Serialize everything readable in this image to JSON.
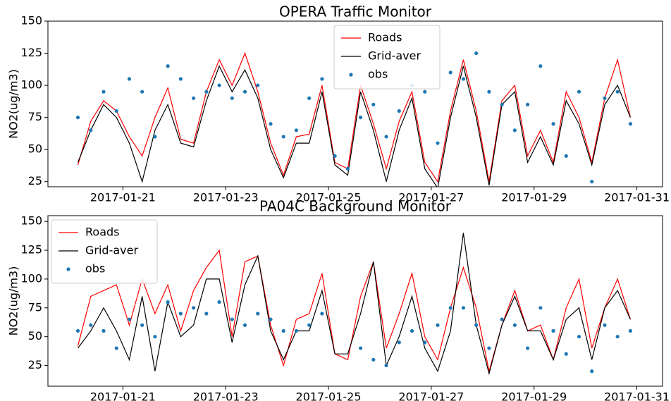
{
  "chart_data": [
    {
      "type": "line",
      "title": "OPERA Traffic Monitor",
      "ylabel": "NO2(ug/m3)",
      "x": [
        "2017-01-20T03:00",
        "2017-01-20T09:00",
        "2017-01-20T15:00",
        "2017-01-20T21:00",
        "2017-01-21T03:00",
        "2017-01-21T09:00",
        "2017-01-21T15:00",
        "2017-01-21T21:00",
        "2017-01-22T03:00",
        "2017-01-22T09:00",
        "2017-01-22T15:00",
        "2017-01-22T21:00",
        "2017-01-23T03:00",
        "2017-01-23T09:00",
        "2017-01-23T15:00",
        "2017-01-23T21:00",
        "2017-01-24T03:00",
        "2017-01-24T09:00",
        "2017-01-24T15:00",
        "2017-01-24T21:00",
        "2017-01-25T03:00",
        "2017-01-25T09:00",
        "2017-01-25T15:00",
        "2017-01-25T21:00",
        "2017-01-26T03:00",
        "2017-01-26T09:00",
        "2017-01-26T15:00",
        "2017-01-26T21:00",
        "2017-01-27T03:00",
        "2017-01-27T09:00",
        "2017-01-27T15:00",
        "2017-01-27T21:00",
        "2017-01-28T03:00",
        "2017-01-28T09:00",
        "2017-01-28T15:00",
        "2017-01-28T21:00",
        "2017-01-29T03:00",
        "2017-01-29T09:00",
        "2017-01-29T15:00",
        "2017-01-29T21:00",
        "2017-01-30T03:00",
        "2017-01-30T09:00",
        "2017-01-30T15:00",
        "2017-01-30T21:00"
      ],
      "xlim": [
        "2017-01-19T13:00",
        "2017-01-31T12:00"
      ],
      "xticks": [
        "2017-01-21",
        "2017-01-23",
        "2017-01-25",
        "2017-01-27",
        "2017-01-29",
        "2017-01-31"
      ],
      "ylim": [
        21,
        150
      ],
      "yticks": [
        25,
        50,
        75,
        100,
        125,
        150
      ],
      "legend": "upper center",
      "series": [
        {
          "name": "Roads",
          "color": "#ff0000",
          "style": "line",
          "values": [
            38,
            72,
            88,
            80,
            60,
            45,
            75,
            98,
            58,
            55,
            95,
            120,
            100,
            125,
            95,
            55,
            30,
            60,
            62,
            100,
            40,
            35,
            100,
            70,
            35,
            72,
            95,
            40,
            25,
            80,
            120,
            80,
            25,
            88,
            100,
            45,
            65,
            40,
            95,
            75,
            40,
            90,
            120,
            75
          ]
        },
        {
          "name": "Grid-aver",
          "color": "#000000",
          "style": "line",
          "values": [
            40,
            65,
            85,
            75,
            55,
            25,
            65,
            85,
            55,
            52,
            88,
            115,
            95,
            112,
            90,
            50,
            28,
            55,
            55,
            95,
            38,
            30,
            95,
            65,
            25,
            65,
            90,
            35,
            20,
            75,
            115,
            75,
            22,
            85,
            95,
            40,
            60,
            38,
            88,
            70,
            38,
            85,
            100,
            75
          ]
        },
        {
          "name": "obs",
          "color": "#1f77b4",
          "style": "marker",
          "values": [
            75,
            65,
            95,
            80,
            105,
            95,
            60,
            115,
            105,
            90,
            95,
            100,
            90,
            95,
            100,
            70,
            60,
            65,
            90,
            105,
            45,
            35,
            75,
            85,
            60,
            80,
            100,
            95,
            55,
            110,
            105,
            125,
            95,
            85,
            65,
            85,
            115,
            70,
            45,
            95,
            25,
            90,
            95,
            70
          ]
        }
      ]
    },
    {
      "type": "line",
      "title": "PA04C Background Monitor",
      "ylabel": "NO2(ug/m3)",
      "x": [
        "2017-01-20T03:00",
        "2017-01-20T09:00",
        "2017-01-20T15:00",
        "2017-01-20T21:00",
        "2017-01-21T03:00",
        "2017-01-21T09:00",
        "2017-01-21T15:00",
        "2017-01-21T21:00",
        "2017-01-22T03:00",
        "2017-01-22T09:00",
        "2017-01-22T15:00",
        "2017-01-22T21:00",
        "2017-01-23T03:00",
        "2017-01-23T09:00",
        "2017-01-23T15:00",
        "2017-01-23T21:00",
        "2017-01-24T03:00",
        "2017-01-24T09:00",
        "2017-01-24T15:00",
        "2017-01-24T21:00",
        "2017-01-25T03:00",
        "2017-01-25T09:00",
        "2017-01-25T15:00",
        "2017-01-25T21:00",
        "2017-01-26T03:00",
        "2017-01-26T09:00",
        "2017-01-26T15:00",
        "2017-01-26T21:00",
        "2017-01-27T03:00",
        "2017-01-27T09:00",
        "2017-01-27T15:00",
        "2017-01-27T21:00",
        "2017-01-28T03:00",
        "2017-01-28T09:00",
        "2017-01-28T15:00",
        "2017-01-28T21:00",
        "2017-01-29T03:00",
        "2017-01-29T09:00",
        "2017-01-29T15:00",
        "2017-01-29T21:00",
        "2017-01-30T03:00",
        "2017-01-30T09:00",
        "2017-01-30T15:00",
        "2017-01-30T21:00"
      ],
      "xlim": [
        "2017-01-19T13:00",
        "2017-01-31T12:00"
      ],
      "xticks": [
        "2017-01-21",
        "2017-01-23",
        "2017-01-25",
        "2017-01-27",
        "2017-01-29",
        "2017-01-31"
      ],
      "ylim": [
        7,
        155
      ],
      "yticks": [
        25,
        50,
        75,
        100,
        125,
        150
      ],
      "legend": "upper left",
      "series": [
        {
          "name": "Roads",
          "color": "#ff0000",
          "style": "line",
          "values": [
            42,
            85,
            90,
            95,
            60,
            100,
            70,
            95,
            55,
            90,
            110,
            125,
            50,
            115,
            120,
            60,
            25,
            65,
            70,
            105,
            35,
            30,
            85,
            115,
            40,
            70,
            105,
            50,
            30,
            75,
            110,
            75,
            20,
            60,
            90,
            55,
            60,
            30,
            75,
            100,
            40,
            75,
            100,
            65
          ]
        },
        {
          "name": "Grid-aver",
          "color": "#000000",
          "style": "line",
          "values": [
            40,
            55,
            75,
            55,
            30,
            85,
            20,
            80,
            50,
            60,
            100,
            100,
            45,
            95,
            120,
            55,
            30,
            55,
            55,
            90,
            35,
            35,
            70,
            115,
            25,
            50,
            85,
            40,
            20,
            55,
            140,
            60,
            18,
            60,
            85,
            55,
            55,
            30,
            65,
            75,
            30,
            75,
            90,
            65
          ]
        },
        {
          "name": "obs",
          "color": "#1f77b4",
          "style": "marker",
          "values": [
            55,
            60,
            55,
            40,
            65,
            60,
            50,
            80,
            70,
            75,
            70,
            80,
            65,
            60,
            70,
            65,
            55,
            55,
            60,
            70,
            null,
            null,
            40,
            30,
            25,
            45,
            55,
            45,
            60,
            75,
            75,
            60,
            40,
            65,
            60,
            40,
            75,
            55,
            35,
            50,
            20,
            60,
            50,
            55
          ]
        }
      ]
    }
  ]
}
